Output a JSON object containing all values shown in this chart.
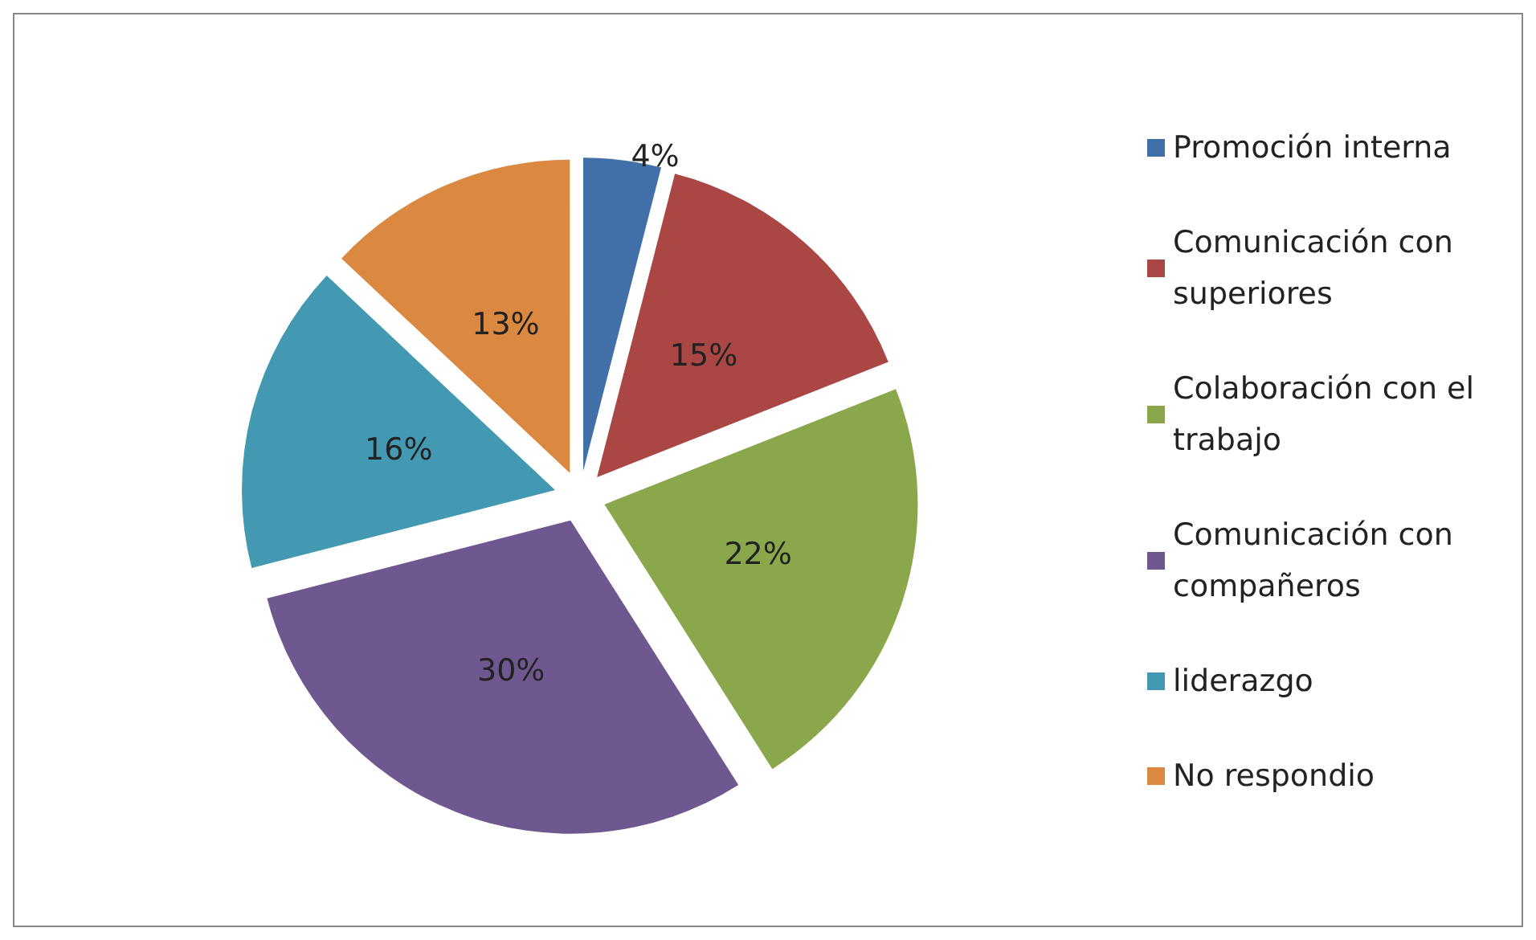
{
  "chart_data": {
    "type": "pie",
    "categories": [
      "Promoción interna",
      "Comunicación con superiores",
      "Colaboración con el trabajo",
      "Comunicación con compañeros",
      "liderazgo",
      "No respondio"
    ],
    "values": [
      4,
      15,
      22,
      30,
      16,
      13
    ],
    "colors": [
      "#4170a8",
      "#aa4644",
      "#8aa84b",
      "#6f5790",
      "#4399b2",
      "#db8840"
    ],
    "value_labels": [
      "4%",
      "15%",
      "22%",
      "30%",
      "16%",
      "13%"
    ],
    "legend": "right"
  }
}
